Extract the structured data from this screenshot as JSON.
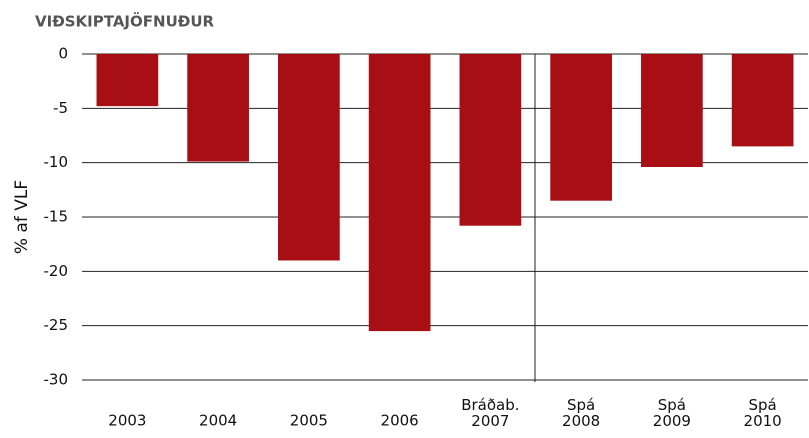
{
  "chart_data": {
    "type": "bar",
    "title": "VIÐSKIPTAJÖFNUÐUR",
    "y_label": "% af VLF",
    "categories": [
      "2003",
      "2004",
      "2005",
      "2006",
      "Bráðab. 2007",
      "Spá 2008",
      "Spá 2009",
      "Spá 2010"
    ],
    "values": [
      -4.8,
      -9.9,
      -19.0,
      -25.5,
      -15.8,
      -13.5,
      -10.4,
      -8.5
    ],
    "color": "#a80f15",
    "ylim": [
      -30,
      0
    ],
    "yticks": [
      0,
      -5,
      -10,
      -15,
      -20,
      -25,
      -30
    ],
    "grid": true
  }
}
